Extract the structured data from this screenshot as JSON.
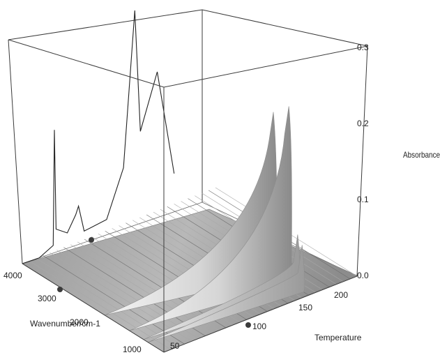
{
  "chart_data": {
    "type": "surface",
    "title": "",
    "xlabel": "Wavenumber/cm-1",
    "ylabel": "Temperature",
    "zlabel": "Absorbance",
    "wavenumber_ticks": [
      "4000",
      "3000",
      "2000",
      "1000"
    ],
    "temperature_ticks": [
      "50",
      "100",
      "150",
      "200"
    ],
    "absorbance_ticks": [
      "0.0",
      "0.1",
      "0.2",
      "0.3"
    ],
    "wavenumber_range": [
      4000,
      800
    ],
    "temperature_range": [
      25,
      225
    ],
    "absorbance_range": [
      0,
      0.3
    ],
    "projected_spectrum": {
      "wavenumber": [
        4000,
        3700,
        3450,
        3430,
        3400,
        3200,
        3050,
        3000,
        2900,
        2500,
        2200,
        2000,
        1900,
        1600,
        1300
      ],
      "absorbance": [
        0.0,
        0.0,
        0.01,
        0.16,
        0.03,
        0.02,
        0.04,
        0.05,
        0.015,
        0.02,
        0.08,
        0.28,
        0.12,
        0.19,
        0.05
      ]
    },
    "peak_series": [
      {
        "wavenumber": 1600,
        "temperatures": [
          25,
          75,
          125,
          175,
          200
        ],
        "absorbance": [
          0.01,
          0.03,
          0.08,
          0.21,
          0.05
        ]
      },
      {
        "wavenumber": 1250,
        "temperatures": [
          25,
          75,
          125,
          175,
          200
        ],
        "absorbance": [
          0.005,
          0.02,
          0.06,
          0.23,
          0.04
        ]
      },
      {
        "wavenumber": 1050,
        "temperatures": [
          25,
          75,
          125,
          175,
          200
        ],
        "absorbance": [
          0.005,
          0.01,
          0.03,
          0.07,
          0.06
        ]
      },
      {
        "wavenumber": 950,
        "temperatures": [
          25,
          75,
          125,
          175,
          200
        ],
        "absorbance": [
          0.003,
          0.01,
          0.02,
          0.06,
          0.05
        ]
      }
    ],
    "grid": false,
    "legend": "none",
    "colors": {
      "surface_light": "#e6e6e6",
      "surface_dark": "#7a7a7a",
      "frame": "#3a3a3a",
      "marker": "#3c3c3c"
    }
  }
}
